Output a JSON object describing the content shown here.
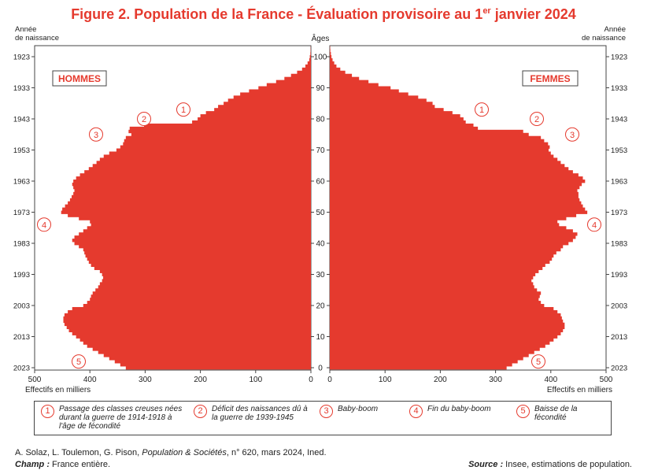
{
  "title_main": "Figure 2. Population de la France - Évaluation provisoire au 1",
  "title_sup": "er",
  "title_end": " janvier 2024",
  "footer": {
    "authors": "A. Solaz, L. Toulemon, G. Pison,",
    "journal": "Population & Sociétés",
    "issue": ", n° 620, mars 2024, Ined.",
    "champ_label": "Champ :",
    "champ_text": " France entière.",
    "source_label": "Source :",
    "source_text": " Insee, estimations de population."
  },
  "legend": [
    {
      "num": "1",
      "text": "Passage des classes creuses nées durant la guerre de 1914-1918 à l'âge de fécondité"
    },
    {
      "num": "2",
      "text": "Déficit des naissances dû à la guerre de 1939-1945"
    },
    {
      "num": "3",
      "text": "Baby-boom"
    },
    {
      "num": "4",
      "text": "Fin du baby-boom"
    },
    {
      "num": "5",
      "text": "Baisse de la fécondité"
    }
  ],
  "colors": {
    "bars": "#e53a2e",
    "accent": "#e53a2e",
    "axis": "#444444"
  },
  "chart_data": {
    "type": "bar",
    "orientation": "horizontal-population-pyramid",
    "center_label": "Âges",
    "left_axis_title": "Année\nde naissance",
    "right_axis_title": "Année\nde naissance",
    "xlabel_left": "Effectifs en milliers",
    "xlabel_right": "Effectifs en milliers",
    "men_label": "HOMMES",
    "women_label": "FEMMES",
    "xlim": [
      0,
      500
    ],
    "x_ticks": [
      500,
      400,
      300,
      200,
      100,
      0
    ],
    "age_ticks": [
      0,
      10,
      20,
      30,
      40,
      50,
      60,
      70,
      80,
      90,
      100
    ],
    "year_ticks": [
      2023,
      2013,
      2003,
      1993,
      1983,
      1973,
      1963,
      1953,
      1943,
      1933,
      1923
    ],
    "annotations": [
      {
        "num": "1",
        "side": "men",
        "age": 83
      },
      {
        "num": "2",
        "side": "men",
        "age": 80
      },
      {
        "num": "3",
        "side": "men",
        "age": 75
      },
      {
        "num": "4",
        "side": "men",
        "age": 46
      },
      {
        "num": "5",
        "side": "men",
        "age": 2
      },
      {
        "num": "1",
        "side": "women",
        "age": 83
      },
      {
        "num": "2",
        "side": "women",
        "age": 80
      },
      {
        "num": "3",
        "side": "women",
        "age": 75
      },
      {
        "num": "4",
        "side": "women",
        "age": 46
      },
      {
        "num": "5",
        "side": "women",
        "age": 2
      }
    ],
    "ages": [
      0,
      1,
      2,
      3,
      4,
      5,
      6,
      7,
      8,
      9,
      10,
      11,
      12,
      13,
      14,
      15,
      16,
      17,
      18,
      19,
      20,
      21,
      22,
      23,
      24,
      25,
      26,
      27,
      28,
      29,
      30,
      31,
      32,
      33,
      34,
      35,
      36,
      37,
      38,
      39,
      40,
      41,
      42,
      43,
      44,
      45,
      46,
      47,
      48,
      49,
      50,
      51,
      52,
      53,
      54,
      55,
      56,
      57,
      58,
      59,
      60,
      61,
      62,
      63,
      64,
      65,
      66,
      67,
      68,
      69,
      70,
      71,
      72,
      73,
      74,
      75,
      76,
      77,
      78,
      79,
      80,
      81,
      82,
      83,
      84,
      85,
      86,
      87,
      88,
      89,
      90,
      91,
      92,
      93,
      94,
      95,
      96,
      97,
      98,
      99,
      100,
      101,
      102,
      103,
      104,
      105
    ],
    "series": [
      {
        "name": "HOMMES",
        "values": [
          335,
          345,
          355,
          365,
          375,
          385,
          395,
          405,
          412,
          418,
          425,
          432,
          438,
          442,
          446,
          448,
          448,
          446,
          440,
          432,
          412,
          405,
          400,
          398,
          395,
          390,
          385,
          382,
          378,
          376,
          378,
          382,
          392,
          398,
          402,
          405,
          408,
          410,
          412,
          420,
          428,
          432,
          428,
          420,
          412,
          405,
          398,
          400,
          420,
          440,
          452,
          450,
          445,
          440,
          436,
          433,
          430,
          428,
          430,
          432,
          430,
          425,
          418,
          410,
          402,
          395,
          388,
          382,
          375,
          365,
          352,
          345,
          340,
          338,
          335,
          325,
          330,
          328,
          302,
          215,
          205,
          200,
          190,
          175,
          168,
          158,
          150,
          140,
          128,
          112,
          95,
          80,
          63,
          48,
          36,
          25,
          16,
          10,
          6,
          3,
          2,
          1,
          0.5,
          0.3,
          0.2,
          0.1
        ]
      },
      {
        "name": "FEMMES",
        "values": [
          320,
          330,
          340,
          350,
          360,
          370,
          380,
          390,
          398,
          405,
          412,
          418,
          422,
          425,
          425,
          422,
          420,
          418,
          412,
          405,
          388,
          382,
          378,
          380,
          382,
          375,
          370,
          368,
          365,
          368,
          372,
          378,
          385,
          390,
          398,
          402,
          405,
          410,
          418,
          422,
          432,
          440,
          445,
          448,
          440,
          428,
          415,
          412,
          428,
          446,
          466,
          462,
          458,
          455,
          452,
          450,
          450,
          448,
          452,
          456,
          462,
          458,
          450,
          440,
          432,
          425,
          418,
          412,
          405,
          400,
          396,
          398,
          395,
          388,
          382,
          360,
          350,
          268,
          260,
          246,
          242,
          236,
          222,
          206,
          190,
          186,
          175,
          160,
          142,
          125,
          110,
          88,
          70,
          53,
          40,
          28,
          19,
          12,
          8,
          5,
          3,
          2,
          1,
          0.5,
          0.2,
          0.1
        ]
      }
    ]
  }
}
